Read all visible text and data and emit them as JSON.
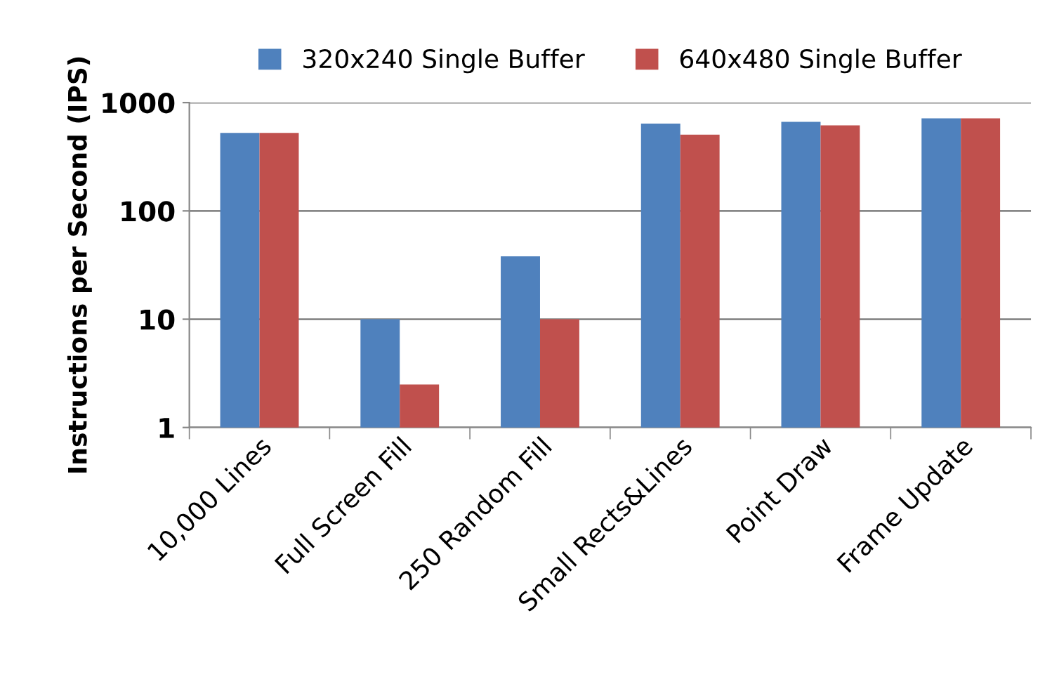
{
  "chart_data": {
    "type": "bar",
    "ylabel": "Instructions per Second (IPS)",
    "categories": [
      "10,000 Lines",
      "Full Screen Fill",
      "250 Random Fill",
      "Small Rects&Lines",
      "Point Draw",
      "Frame Update"
    ],
    "series": [
      {
        "name": "320x240 Single Buffer",
        "color": "#4f81bd",
        "values": [
          525,
          10,
          38,
          640,
          665,
          716
        ]
      },
      {
        "name": "640x480 Single Buffer",
        "color": "#c0504d",
        "values": [
          525,
          2.5,
          10,
          506,
          617,
          716
        ]
      }
    ],
    "log": true,
    "ylim": [
      1,
      1000
    ],
    "yticks": [
      1,
      10,
      100,
      1000
    ],
    "grid": "y",
    "legend": "top"
  }
}
